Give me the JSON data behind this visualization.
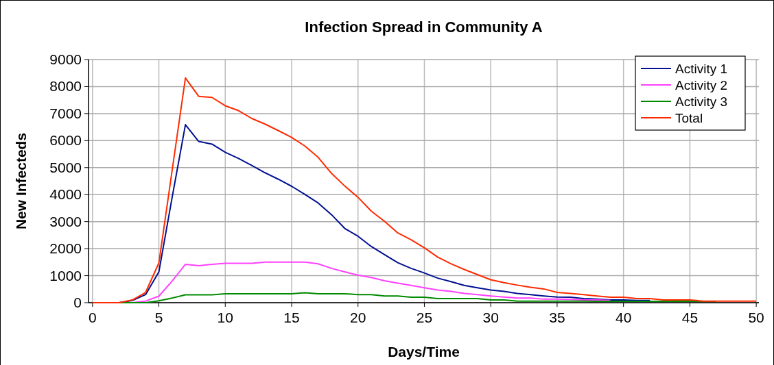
{
  "chart_data": {
    "type": "line",
    "title": "Infection Spread in Community A",
    "xlabel": "Days/Time",
    "ylabel": "New Infecteds",
    "x": [
      0,
      1,
      2,
      3,
      4,
      5,
      6,
      7,
      8,
      9,
      10,
      11,
      12,
      13,
      14,
      15,
      16,
      17,
      18,
      19,
      20,
      21,
      22,
      23,
      24,
      25,
      26,
      27,
      28,
      29,
      30,
      31,
      32,
      33,
      34,
      35,
      36,
      37,
      38,
      39,
      40,
      41,
      42,
      43,
      44,
      45,
      46,
      47,
      48,
      49,
      50
    ],
    "series": [
      {
        "name": "Activity 1",
        "color": "#001090",
        "values": [
          null,
          null,
          0,
          80,
          300,
          1140,
          3900,
          6590,
          5970,
          5870,
          5570,
          5340,
          5080,
          4810,
          4570,
          4310,
          4010,
          3690,
          3260,
          2750,
          2460,
          2080,
          1780,
          1480,
          1270,
          1100,
          910,
          780,
          640,
          550,
          470,
          420,
          340,
          300,
          250,
          210,
          200,
          150,
          130,
          100,
          100,
          80,
          80,
          null,
          null,
          null,
          null,
          null,
          null,
          null,
          null
        ]
      },
      {
        "name": "Activity 2",
        "color": "#ff40ff",
        "values": [
          null,
          null,
          0,
          0,
          60,
          240,
          800,
          1420,
          1370,
          1420,
          1460,
          1460,
          1460,
          1500,
          1500,
          1500,
          1500,
          1440,
          1270,
          1140,
          1020,
          930,
          810,
          720,
          640,
          550,
          470,
          420,
          340,
          300,
          250,
          210,
          170,
          170,
          130,
          130,
          120,
          100,
          100,
          80,
          null,
          null,
          null,
          null,
          null,
          null,
          null,
          null,
          null,
          null,
          null
        ]
      },
      {
        "name": "Activity 3",
        "color": "#008a00",
        "values": [
          0,
          0,
          0,
          0,
          0,
          70,
          170,
          290,
          290,
          290,
          330,
          330,
          330,
          330,
          330,
          330,
          370,
          330,
          330,
          330,
          300,
          300,
          250,
          250,
          200,
          200,
          150,
          150,
          150,
          150,
          100,
          100,
          60,
          60,
          60,
          60,
          60,
          60,
          50,
          50,
          50,
          50,
          50,
          50,
          50,
          50,
          50,
          50,
          null,
          null,
          null
        ]
      },
      {
        "name": "Total",
        "color": "#ff2a00",
        "values": [
          0,
          0,
          0,
          100,
          380,
          1470,
          4900,
          8320,
          7640,
          7600,
          7290,
          7110,
          6820,
          6610,
          6370,
          6120,
          5800,
          5380,
          4790,
          4320,
          3900,
          3390,
          3010,
          2580,
          2330,
          2030,
          1690,
          1440,
          1230,
          1040,
          850,
          740,
          650,
          570,
          510,
          380,
          340,
          300,
          250,
          200,
          200,
          150,
          150,
          100,
          100,
          100,
          60,
          60,
          60,
          60,
          60
        ]
      }
    ],
    "xlim": [
      -0.3,
      50.2
    ],
    "xticks": [
      0,
      5,
      10,
      15,
      20,
      25,
      30,
      35,
      40,
      45,
      50
    ],
    "ylim": [
      0,
      9000
    ],
    "yticks": [
      0,
      1000,
      2000,
      3000,
      4000,
      5000,
      6000,
      7000,
      8000,
      9000
    ],
    "grid": true,
    "legend": "top right",
    "marker": "none",
    "line_style": "solid"
  }
}
